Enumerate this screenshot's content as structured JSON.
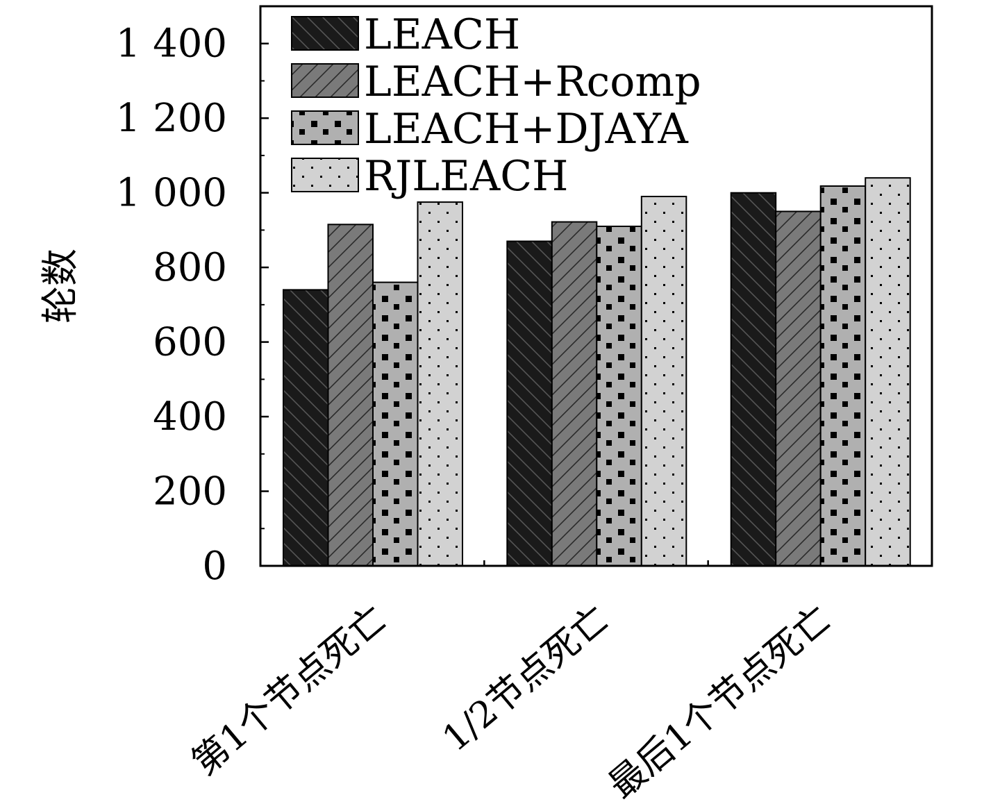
{
  "chart_data": {
    "type": "bar",
    "title": "",
    "xlabel": "",
    "ylabel": "轮数",
    "categories": [
      "第1个节点死亡",
      "1/2节点死亡",
      "最后1个节点死亡"
    ],
    "series": [
      {
        "name": "LEACH",
        "values": [
          740,
          870,
          1000
        ],
        "color": "#1a1a1a",
        "pattern": "backslash-hatch"
      },
      {
        "name": "LEACH+Rcomp",
        "values": [
          915,
          922,
          950
        ],
        "color": "#7a7a7a",
        "pattern": "slash-hatch"
      },
      {
        "name": "LEACH+DJAYA",
        "values": [
          760,
          910,
          1018
        ],
        "color": "#b0b0b0",
        "pattern": "black-squares"
      },
      {
        "name": "RJLEACH",
        "values": [
          975,
          990,
          1040
        ],
        "color": "#d2d2d2",
        "pattern": "dots"
      }
    ],
    "ylim": [
      0,
      1500
    ],
    "yticks": [
      0,
      200,
      400,
      600,
      800,
      1000,
      1200,
      1400
    ],
    "ytick_labels": [
      "0",
      "200",
      "400",
      "600",
      "800",
      "1 000",
      "1 200",
      "1 400"
    ],
    "legend_position": "top-left",
    "grid": false
  }
}
